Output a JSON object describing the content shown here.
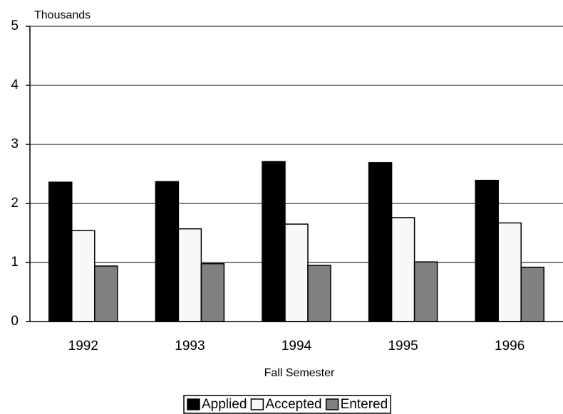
{
  "chart_data": {
    "type": "bar",
    "y_axis_label": "Thousands",
    "x_axis_label": "Fall Semester",
    "categories": [
      "1992",
      "1993",
      "1994",
      "1995",
      "1996"
    ],
    "series": [
      {
        "name": "Applied",
        "color": "#000000",
        "values": [
          2.36,
          2.37,
          2.71,
          2.69,
          2.39
        ]
      },
      {
        "name": "Accepted",
        "color": "#f8f8f8",
        "values": [
          1.54,
          1.57,
          1.65,
          1.76,
          1.67
        ]
      },
      {
        "name": "Entered",
        "color": "#808080",
        "values": [
          0.94,
          0.98,
          0.95,
          1.01,
          0.92
        ]
      }
    ],
    "ylim": [
      0,
      5
    ],
    "yticks": [
      0,
      1,
      2,
      3,
      4,
      5
    ],
    "grid": true,
    "legend": "bottom"
  }
}
